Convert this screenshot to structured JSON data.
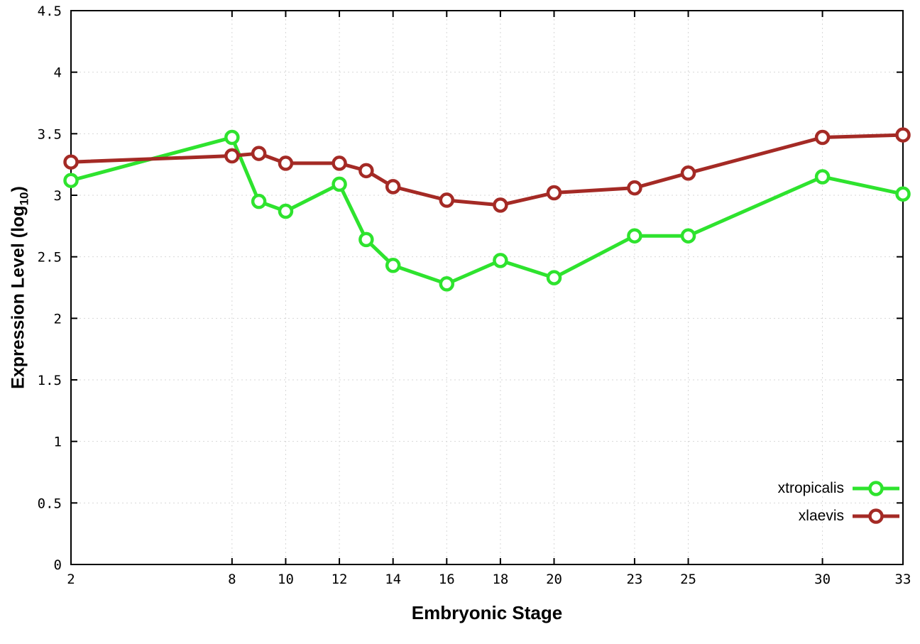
{
  "chart_data": {
    "type": "line",
    "title": "",
    "xlabel": "Embryonic Stage",
    "ylabel": "Expression Level (log10)",
    "ylabel_text": "Expression Level (log",
    "ylabel_sub": "10",
    "ylabel_end": ")",
    "xlim": [
      2,
      33
    ],
    "ylim": [
      0,
      4.5
    ],
    "x_ticks": [
      2,
      8,
      10,
      12,
      14,
      16,
      18,
      20,
      23,
      25,
      30,
      33
    ],
    "x_tick_labels": [
      "2",
      "8",
      "10",
      "12",
      "14",
      "16",
      "18",
      "20",
      "23",
      "25",
      "30",
      "33"
    ],
    "y_ticks": [
      0,
      0.5,
      1,
      1.5,
      2,
      2.5,
      3,
      3.5,
      4,
      4.5
    ],
    "y_tick_labels": [
      "0",
      "0.5",
      "1",
      "1.5",
      "2",
      "2.5",
      "3",
      "3.5",
      "4",
      "4.5"
    ],
    "grid": true,
    "grid_style": "dotted",
    "legend_position": "bottom-right",
    "marker": "open-circle",
    "x": [
      2,
      8,
      9,
      10,
      12,
      13,
      14,
      16,
      18,
      20,
      23,
      25,
      30,
      33
    ],
    "series": [
      {
        "name": "xtropicalis",
        "color": "#2ee32e",
        "values": [
          3.12,
          3.47,
          2.95,
          2.87,
          3.09,
          2.64,
          2.43,
          2.28,
          2.47,
          2.33,
          2.67,
          2.67,
          3.15,
          3.01
        ]
      },
      {
        "name": "xlaevis",
        "color": "#a42a25",
        "values": [
          3.27,
          3.32,
          3.34,
          3.26,
          3.26,
          3.2,
          3.07,
          2.96,
          2.92,
          3.02,
          3.06,
          3.18,
          3.47,
          3.49
        ]
      }
    ]
  }
}
